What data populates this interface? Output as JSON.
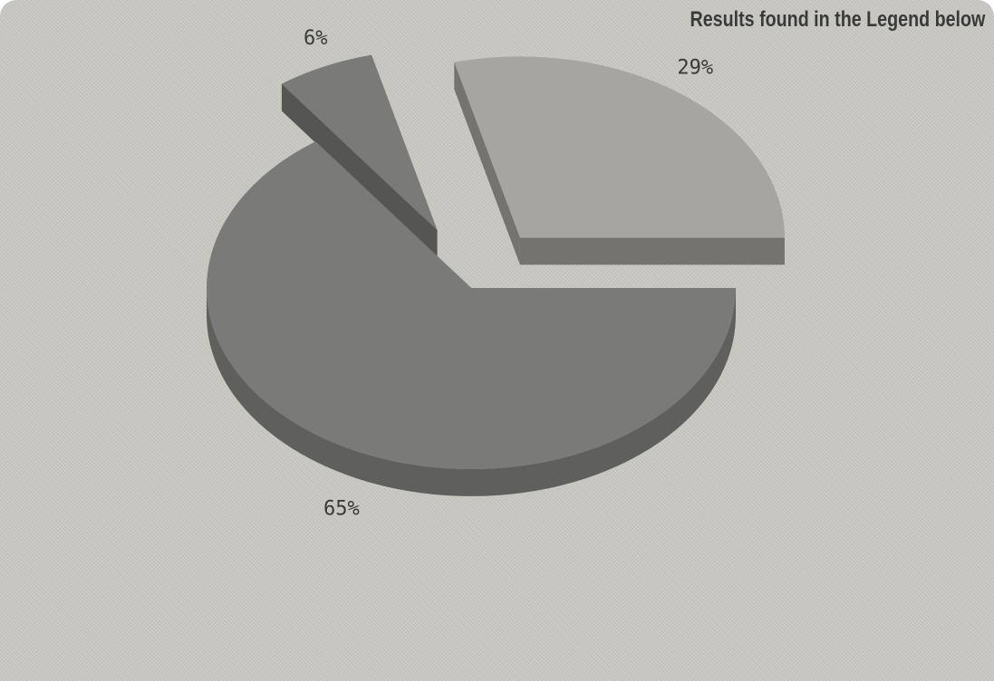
{
  "chart_data": {
    "type": "pie",
    "note": "Results found in the Legend below",
    "slices": [
      {
        "label": "65%",
        "value": 65,
        "color": "#7a7a78",
        "exploded": false
      },
      {
        "label": "6%",
        "value": 6,
        "color": "#7a7a78",
        "exploded": true
      },
      {
        "label": "29%",
        "value": 29,
        "color": "#a6a5a0",
        "exploded": true
      }
    ],
    "legend": "none"
  }
}
